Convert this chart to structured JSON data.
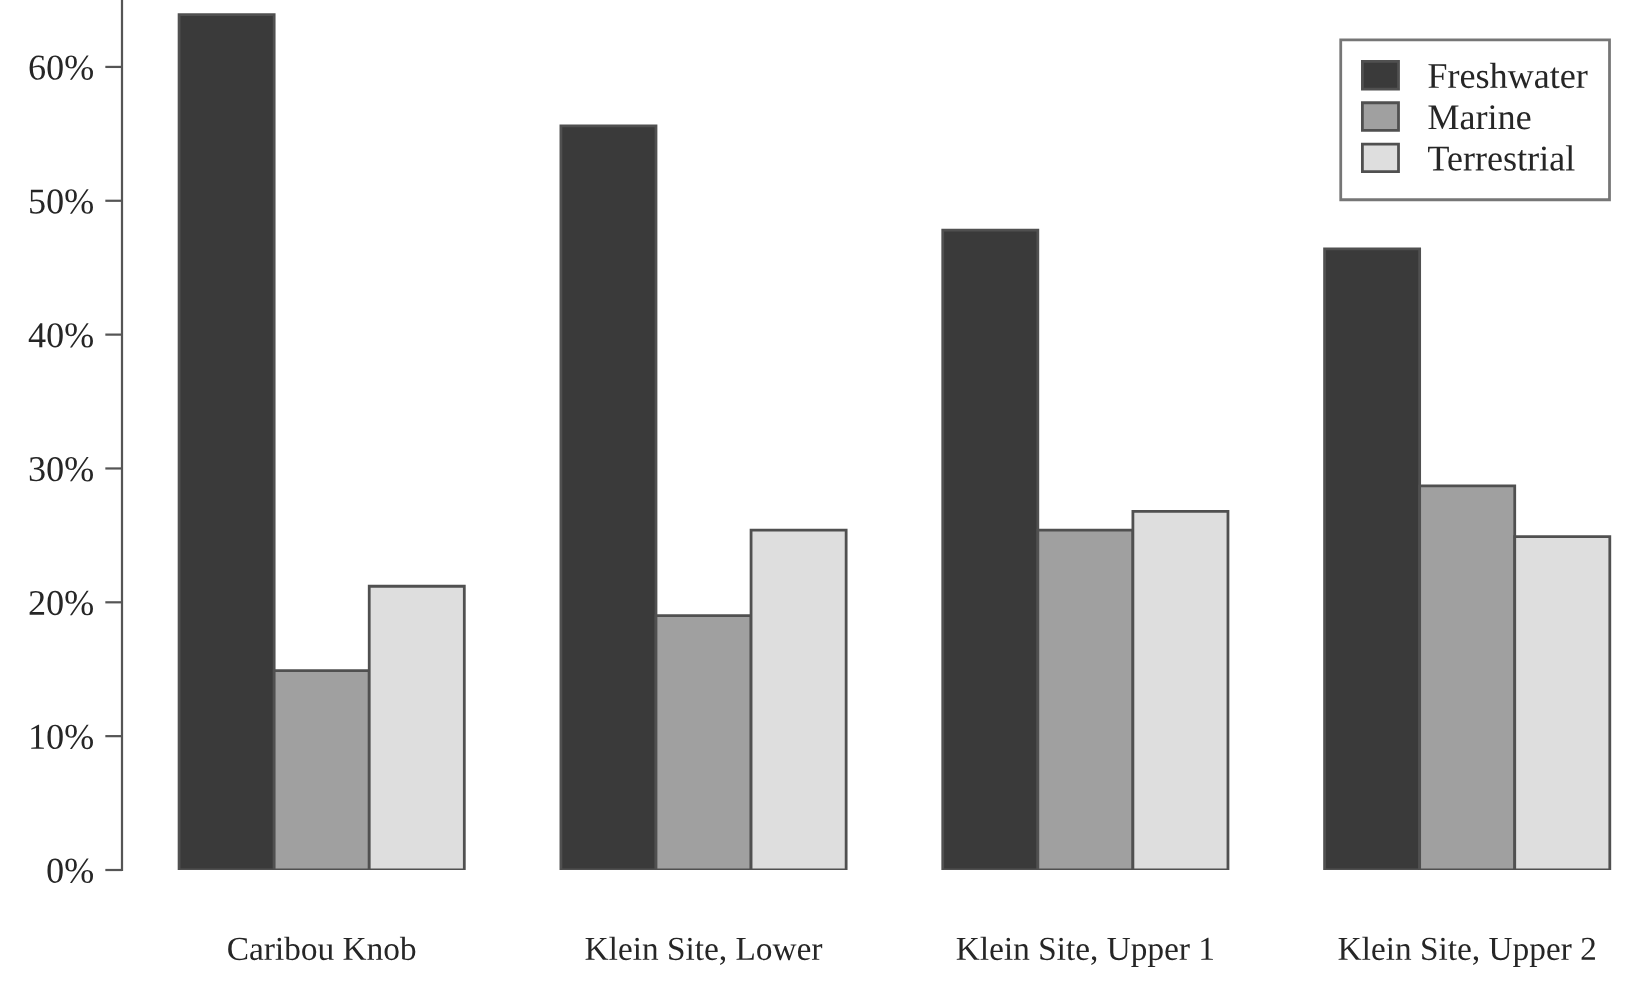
{
  "chart_data": {
    "type": "bar",
    "categories": [
      "Caribou Knob",
      "Klein Site, Lower",
      "Klein Site, Upper 1",
      "Klein Site, Upper 2"
    ],
    "series": [
      {
        "name": "Freshwater",
        "color": "#3a3a3a",
        "values": [
          63.9,
          55.6,
          47.8,
          46.4
        ]
      },
      {
        "name": "Marine",
        "color": "#a0a0a0",
        "values": [
          14.9,
          19.0,
          25.4,
          28.7
        ]
      },
      {
        "name": "Terrestrial",
        "color": "#dedede",
        "values": [
          21.2,
          25.4,
          26.8,
          24.9
        ]
      }
    ],
    "ylim": [
      0,
      65
    ],
    "yticks": [
      {
        "value": 0,
        "label": "0%"
      },
      {
        "value": 10,
        "label": "10%"
      },
      {
        "value": 20,
        "label": "20%"
      },
      {
        "value": 30,
        "label": "30%"
      },
      {
        "value": 40,
        "label": "40%"
      },
      {
        "value": 50,
        "label": "50%"
      },
      {
        "value": 60,
        "label": "60%"
      }
    ],
    "grid": false,
    "legend": "top right"
  }
}
